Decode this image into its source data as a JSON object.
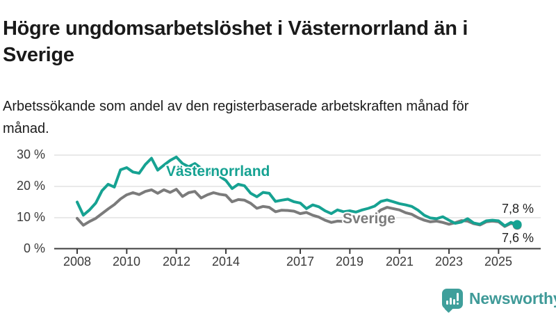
{
  "header": {
    "title": "Högre ungdomsarbetslöshet i Västernorrland än i Sverige",
    "subtitle": "Arbetssökande som andel av den registerbaserade arbetskraften månad för månad."
  },
  "chart_data": {
    "type": "line",
    "title": "Högre ungdomsarbetslöshet i Västernorrland än i Sverige",
    "xlabel": "",
    "ylabel": "",
    "unit": "%",
    "grid": "horizontal",
    "legend_position": "inline-labels",
    "xlim": [
      2007.5,
      2026.2
    ],
    "ylim": [
      0,
      32
    ],
    "yticks": [
      "30 %",
      "20 %",
      "10 %",
      "0 %"
    ],
    "ytick_values": [
      30,
      20,
      10,
      0
    ],
    "xticks": [
      "2008",
      "2010",
      "2012",
      "2014",
      "2017",
      "2019",
      "2021",
      "2023",
      "2025"
    ],
    "xtick_values": [
      2008,
      2010,
      2012,
      2014,
      2017,
      2019,
      2021,
      2023,
      2025
    ],
    "x": [
      2008,
      2008.25,
      2008.5,
      2008.75,
      2009,
      2009.25,
      2009.5,
      2009.75,
      2010,
      2010.25,
      2010.5,
      2010.75,
      2011,
      2011.25,
      2011.5,
      2011.75,
      2012,
      2012.25,
      2012.5,
      2012.75,
      2013,
      2013.25,
      2013.5,
      2013.75,
      2014,
      2014.25,
      2014.5,
      2014.75,
      2015,
      2015.25,
      2015.5,
      2015.75,
      2016,
      2016.25,
      2016.5,
      2016.75,
      2017,
      2017.25,
      2017.5,
      2017.75,
      2018,
      2018.25,
      2018.5,
      2018.75,
      2019,
      2019.25,
      2019.5,
      2019.75,
      2020,
      2020.25,
      2020.5,
      2020.75,
      2021,
      2021.25,
      2021.5,
      2021.75,
      2022,
      2022.25,
      2022.5,
      2022.75,
      2023,
      2023.25,
      2023.5,
      2023.75,
      2024,
      2024.25,
      2024.5,
      2024.75,
      2025,
      2025.25,
      2025.5,
      2025.75
    ],
    "series": [
      {
        "name": "Västernorrland",
        "color": "#16a292",
        "end_label": "7,8 %",
        "end_value": 7.8,
        "values": [
          15.0,
          10.8,
          12.5,
          14.7,
          18.6,
          20.7,
          19.8,
          25.3,
          26.0,
          24.6,
          24.2,
          27.0,
          29.0,
          25.2,
          26.8,
          28.3,
          29.4,
          27.3,
          26.3,
          27.3,
          25.8,
          23.9,
          24.8,
          23.2,
          21.9,
          19.3,
          20.7,
          20.2,
          17.8,
          16.7,
          18.1,
          17.8,
          15.2,
          15.6,
          15.9,
          15.1,
          14.7,
          12.9,
          14.1,
          13.5,
          12.2,
          11.3,
          12.5,
          11.9,
          12.2,
          11.8,
          12.5,
          13.0,
          13.7,
          15.2,
          15.7,
          15.1,
          14.5,
          14.1,
          13.6,
          12.4,
          10.8,
          9.9,
          9.7,
          10.3,
          9.2,
          8.2,
          8.6,
          9.7,
          8.3,
          7.9,
          9.0,
          9.2,
          9.0,
          7.4,
          8.5,
          7.8
        ]
      },
      {
        "name": "Sverige",
        "color": "#7b7b7b",
        "end_label": "7,6 %",
        "end_value": 7.6,
        "values": [
          9.8,
          7.6,
          8.8,
          9.8,
          11.3,
          12.8,
          14.2,
          16.0,
          17.3,
          18.0,
          17.4,
          18.4,
          18.9,
          17.8,
          18.9,
          18.1,
          19.1,
          16.8,
          18.0,
          18.4,
          16.3,
          17.3,
          18.0,
          17.5,
          17.2,
          15.1,
          15.8,
          15.6,
          14.6,
          13.0,
          13.6,
          13.3,
          11.9,
          12.4,
          12.3,
          12.1,
          11.3,
          11.7,
          10.8,
          10.2,
          9.2,
          8.5,
          8.9,
          8.8,
          9.4,
          9.3,
          9.7,
          10.0,
          10.8,
          12.5,
          13.3,
          12.9,
          12.5,
          11.6,
          11.1,
          10.0,
          9.2,
          8.7,
          8.9,
          8.5,
          7.9,
          8.4,
          9.1,
          8.9,
          8.1,
          7.7,
          8.7,
          8.9,
          8.7,
          7.2,
          8.2,
          7.6
        ]
      }
    ]
  },
  "branding": {
    "logo_text": "Newsworthy",
    "color": "#3f9a98"
  }
}
